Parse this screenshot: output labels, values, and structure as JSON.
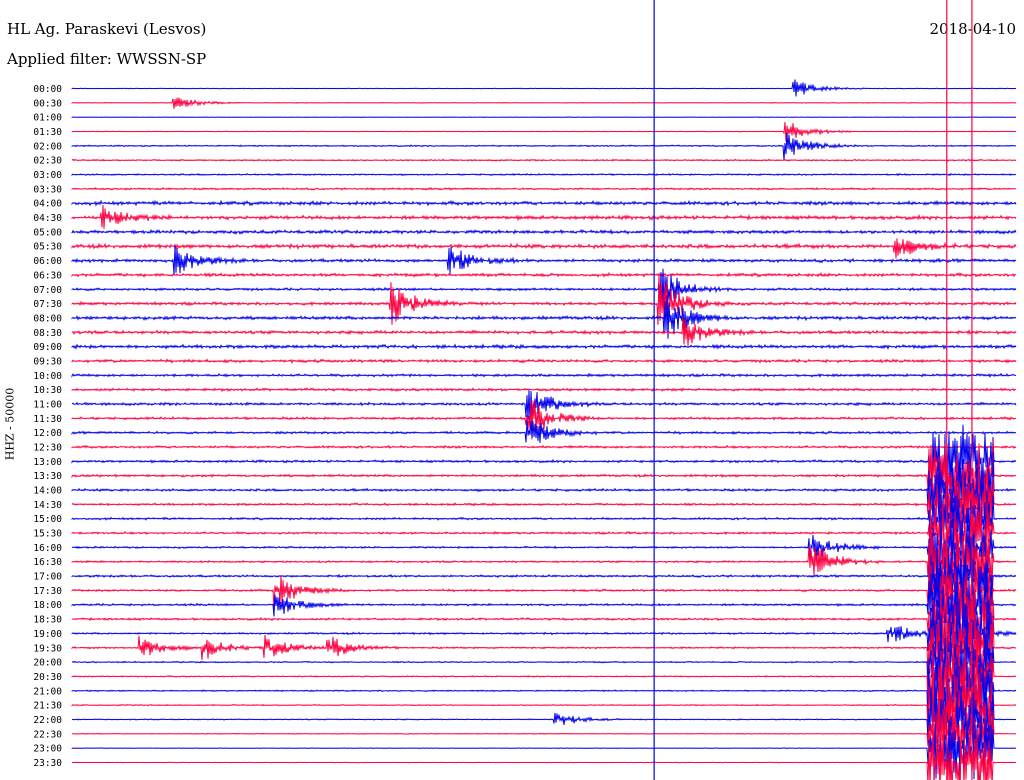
{
  "header": {
    "station": "HL Ag. Paraskevi (Lesvos)",
    "filter": "Applied filter: WWSSN-SP",
    "date": "2018-04-10"
  },
  "chart_data": {
    "type": "line",
    "title": "HL Ag. Paraskevi (Lesvos)",
    "subtitle": "Applied filter: WWSSN-SP",
    "date": "2018-04-10",
    "ylabel": "HHZ - 50000",
    "trace_minutes": 30,
    "colors": [
      "#0000ee",
      "#ff0040"
    ],
    "rows": [
      "00:00",
      "00:30",
      "01:00",
      "01:30",
      "02:00",
      "02:30",
      "03:00",
      "03:30",
      "04:00",
      "04:30",
      "05:00",
      "05:30",
      "06:00",
      "06:30",
      "07:00",
      "07:30",
      "08:00",
      "08:30",
      "09:00",
      "09:30",
      "10:00",
      "10:30",
      "11:00",
      "11:30",
      "12:00",
      "12:30",
      "13:00",
      "13:30",
      "14:00",
      "14:30",
      "15:00",
      "15:30",
      "16:00",
      "16:30",
      "17:00",
      "17:30",
      "18:00",
      "18:30",
      "19:00",
      "19:30",
      "20:00",
      "20:30",
      "21:00",
      "21:30",
      "22:00",
      "22:30",
      "23:00",
      "23:30"
    ],
    "noise": [
      0.12,
      0.12,
      0.1,
      0.12,
      0.25,
      0.28,
      0.3,
      0.35,
      0.7,
      0.7,
      0.65,
      0.75,
      0.6,
      0.6,
      0.5,
      0.55,
      0.65,
      0.6,
      0.65,
      0.55,
      0.5,
      0.5,
      0.5,
      0.45,
      0.45,
      0.45,
      0.45,
      0.45,
      0.45,
      0.4,
      0.4,
      0.4,
      0.35,
      0.35,
      0.4,
      0.4,
      0.4,
      0.4,
      0.35,
      0.3,
      0.25,
      0.25,
      0.25,
      0.2,
      0.2,
      0.15,
      0.1,
      0.1
    ],
    "events": [
      {
        "row": 1,
        "minute": 3.3,
        "amp": 1.0
      },
      {
        "row": 0,
        "minute": 23.0,
        "amp": 1.6
      },
      {
        "row": 3,
        "minute": 22.7,
        "amp": 2.0
      },
      {
        "row": 4,
        "minute": 22.7,
        "amp": 2.5
      },
      {
        "row": 9,
        "minute": 1.0,
        "amp": 2.2
      },
      {
        "row": 12,
        "minute": 3.3,
        "amp": 2.5
      },
      {
        "row": 12,
        "minute": 12.0,
        "amp": 2.5
      },
      {
        "row": 15,
        "minute": 10.2,
        "amp": 3.5
      },
      {
        "row": 14,
        "minute": 18.7,
        "amp": 4.0
      },
      {
        "row": 15,
        "minute": 18.7,
        "amp": 5.0
      },
      {
        "row": 16,
        "minute": 18.9,
        "amp": 4.0
      },
      {
        "row": 17,
        "minute": 19.5,
        "amp": 2.5
      },
      {
        "row": 22,
        "minute": 14.5,
        "amp": 3.5
      },
      {
        "row": 23,
        "minute": 14.5,
        "amp": 4.0
      },
      {
        "row": 24,
        "minute": 14.5,
        "amp": 3.0
      },
      {
        "row": 11,
        "minute": 26.2,
        "amp": 2.0
      },
      {
        "row": 32,
        "minute": 23.5,
        "amp": 3.0
      },
      {
        "row": 33,
        "minute": 23.5,
        "amp": 3.5
      },
      {
        "row": 35,
        "minute": 6.5,
        "amp": 3.0
      },
      {
        "row": 36,
        "minute": 6.5,
        "amp": 2.0
      },
      {
        "row": 39,
        "minute": 2.2,
        "amp": 2.0
      },
      {
        "row": 39,
        "minute": 4.2,
        "amp": 2.0
      },
      {
        "row": 39,
        "minute": 6.2,
        "amp": 2.0
      },
      {
        "row": 39,
        "minute": 8.2,
        "amp": 2.0
      },
      {
        "row": 44,
        "minute": 15.4,
        "amp": 1.3
      },
      {
        "row": 38,
        "minute": 26.0,
        "amp": 2.0
      },
      {
        "row": 38,
        "minute": 28.2,
        "amp": 2.0
      }
    ],
    "long_event": {
      "start_row": 26,
      "minute": 27.5,
      "amp": 6.5
    },
    "spikes": [
      {
        "minute": 18.5,
        "color": 0
      },
      {
        "minute": 28.6,
        "color": 1
      },
      {
        "minute": 27.8,
        "color": 1
      }
    ]
  }
}
